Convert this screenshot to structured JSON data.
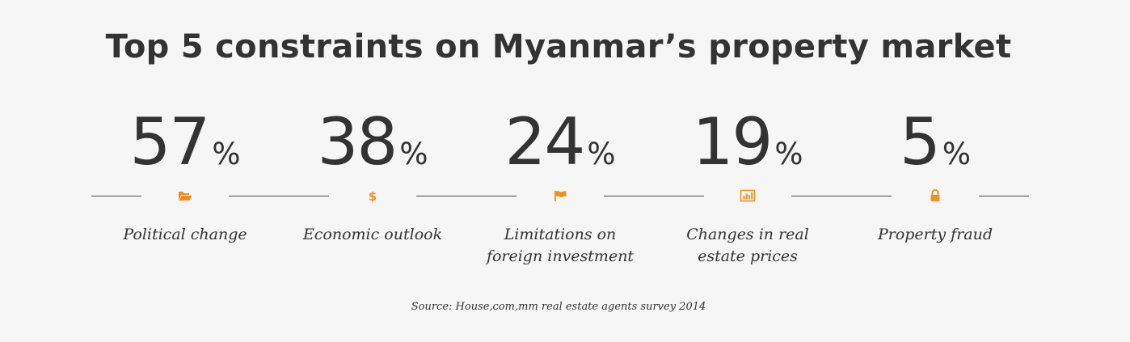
{
  "title": "Top 5 constraints on Myanmar’s property market",
  "accent_color": "#f28f1c",
  "stats": [
    {
      "value": "57",
      "unit": "%",
      "label": "Political change",
      "icon": "folder-open-icon"
    },
    {
      "value": "38",
      "unit": "%",
      "label": "Economic outlook",
      "icon": "dollar-icon"
    },
    {
      "value": "24",
      "unit": "%",
      "label": "Limitations on\nforeign investment",
      "icon": "flag-icon"
    },
    {
      "value": "19",
      "unit": "%",
      "label": "Changes in real\nestate prices",
      "icon": "bar-chart-icon"
    },
    {
      "value": "5",
      "unit": "%",
      "label": "Property fraud",
      "icon": "lock-icon"
    }
  ],
  "source": "Source: House,com,mm real estate agents survey 2014",
  "chart_data": {
    "type": "table",
    "title": "Top 5 constraints on Myanmar’s property market",
    "categories": [
      "Political change",
      "Economic outlook",
      "Limitations on foreign investment",
      "Changes in real estate prices",
      "Property fraud"
    ],
    "values": [
      57,
      38,
      24,
      19,
      5
    ],
    "unit": "%"
  }
}
